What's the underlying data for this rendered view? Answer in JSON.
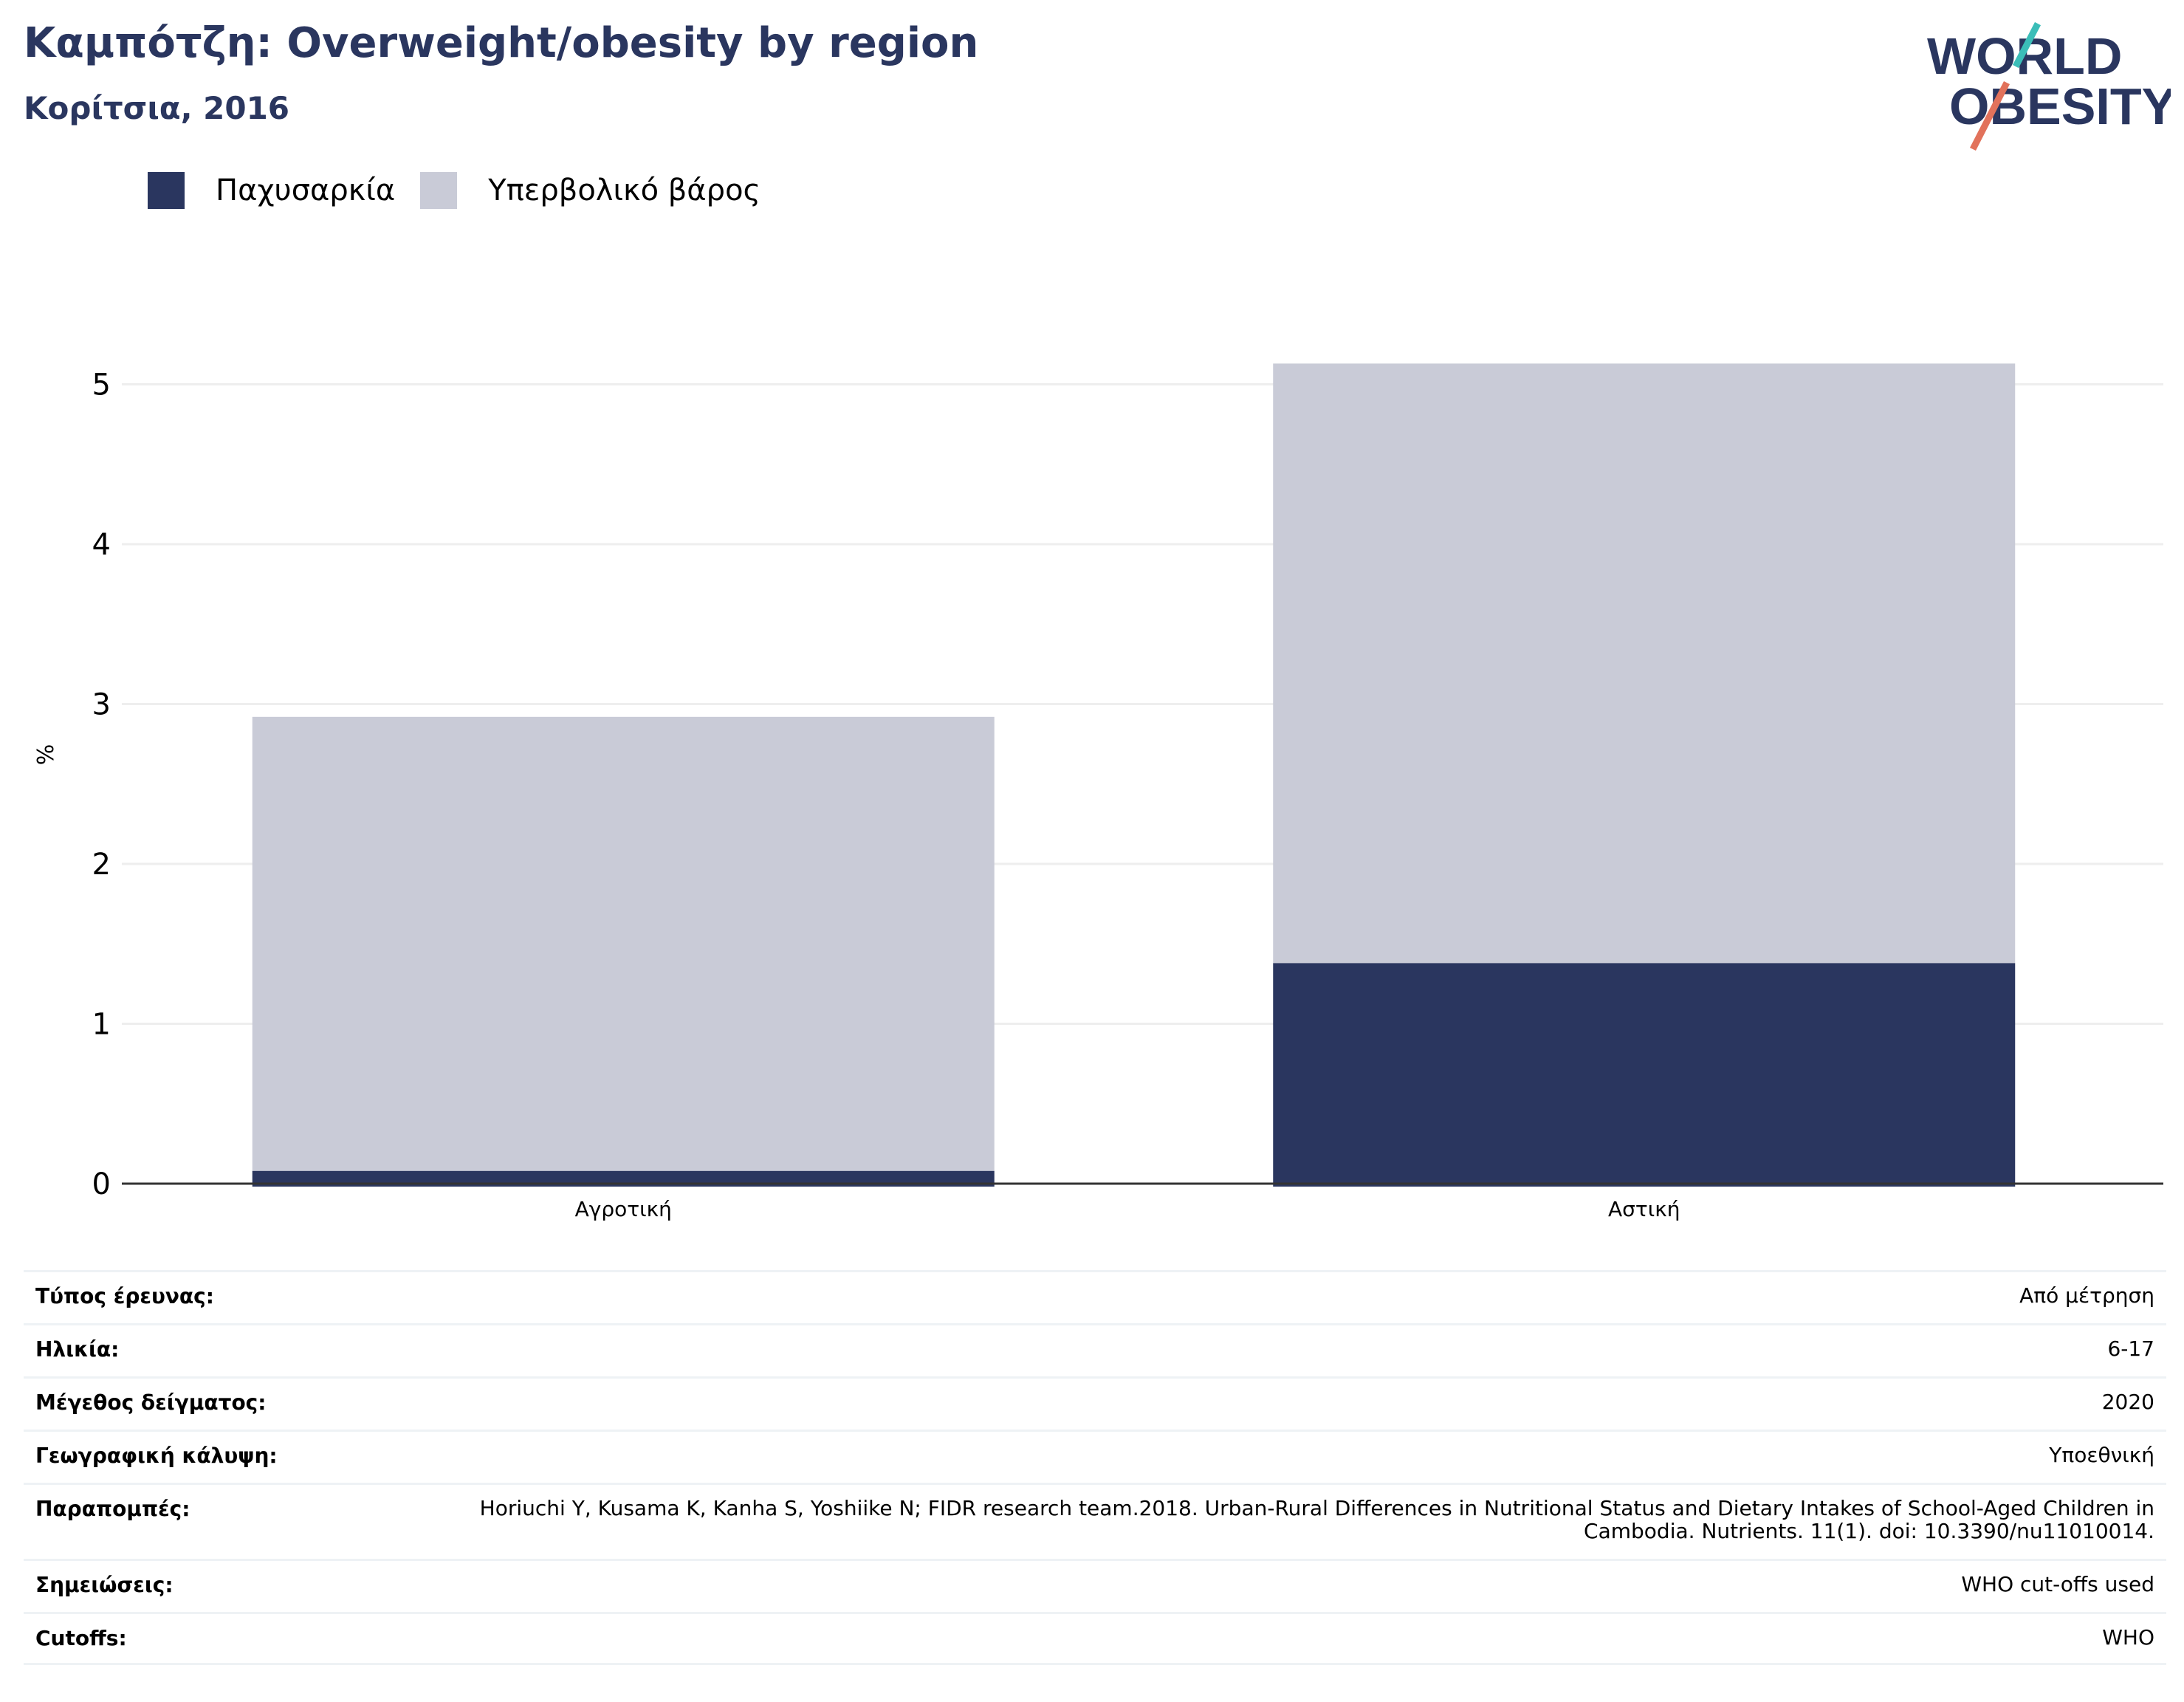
{
  "header": {
    "title": "Καμπότζη: Overweight/obesity by region",
    "subtitle": "Κορίτσια, 2016"
  },
  "logo": {
    "line1": "WORLD",
    "line2": "OBESITY"
  },
  "colors": {
    "obesity": "#2a365f",
    "overweight": "#c9cbd7",
    "title": "#2a365f",
    "logo_teal": "#3bbdb8",
    "logo_coral": "#e2725b"
  },
  "chart_data": {
    "type": "bar",
    "stacked": true,
    "categories": [
      "Αγροτική",
      "Αστική"
    ],
    "series": [
      {
        "name": "Παχυσαρκία",
        "values": [
          0.08,
          1.38
        ]
      },
      {
        "name": "Υπερβολικό βάρος",
        "values": [
          2.84,
          3.75
        ]
      }
    ],
    "ylabel": "%",
    "ylim": [
      0,
      5.5
    ],
    "yticks": [
      0,
      1,
      2,
      3,
      4,
      5
    ],
    "grid": true,
    "legend": "top-left"
  },
  "metadata": [
    {
      "label": "Τύπος έρευνας:",
      "value": "Από μέτρηση"
    },
    {
      "label": "Ηλικία:",
      "value": "6-17"
    },
    {
      "label": "Μέγεθος δείγματος:",
      "value": "2020"
    },
    {
      "label": "Γεωγραφική κάλυψη:",
      "value": "Υποεθνική"
    },
    {
      "label": "Παραπομπές:",
      "value": "Horiuchi Y, Kusama K, Kanha S, Yoshiike N; FIDR research team.2018. Urban-Rural Differences in Nutritional Status and Dietary Intakes of School-Aged Children in Cambodia. Nutrients. 11(1). doi: 10.3390/nu11010014."
    },
    {
      "label": "Σημειώσεις:",
      "value": "WHO cut-offs used"
    },
    {
      "label": "Cutoffs:",
      "value": "WHO"
    }
  ]
}
